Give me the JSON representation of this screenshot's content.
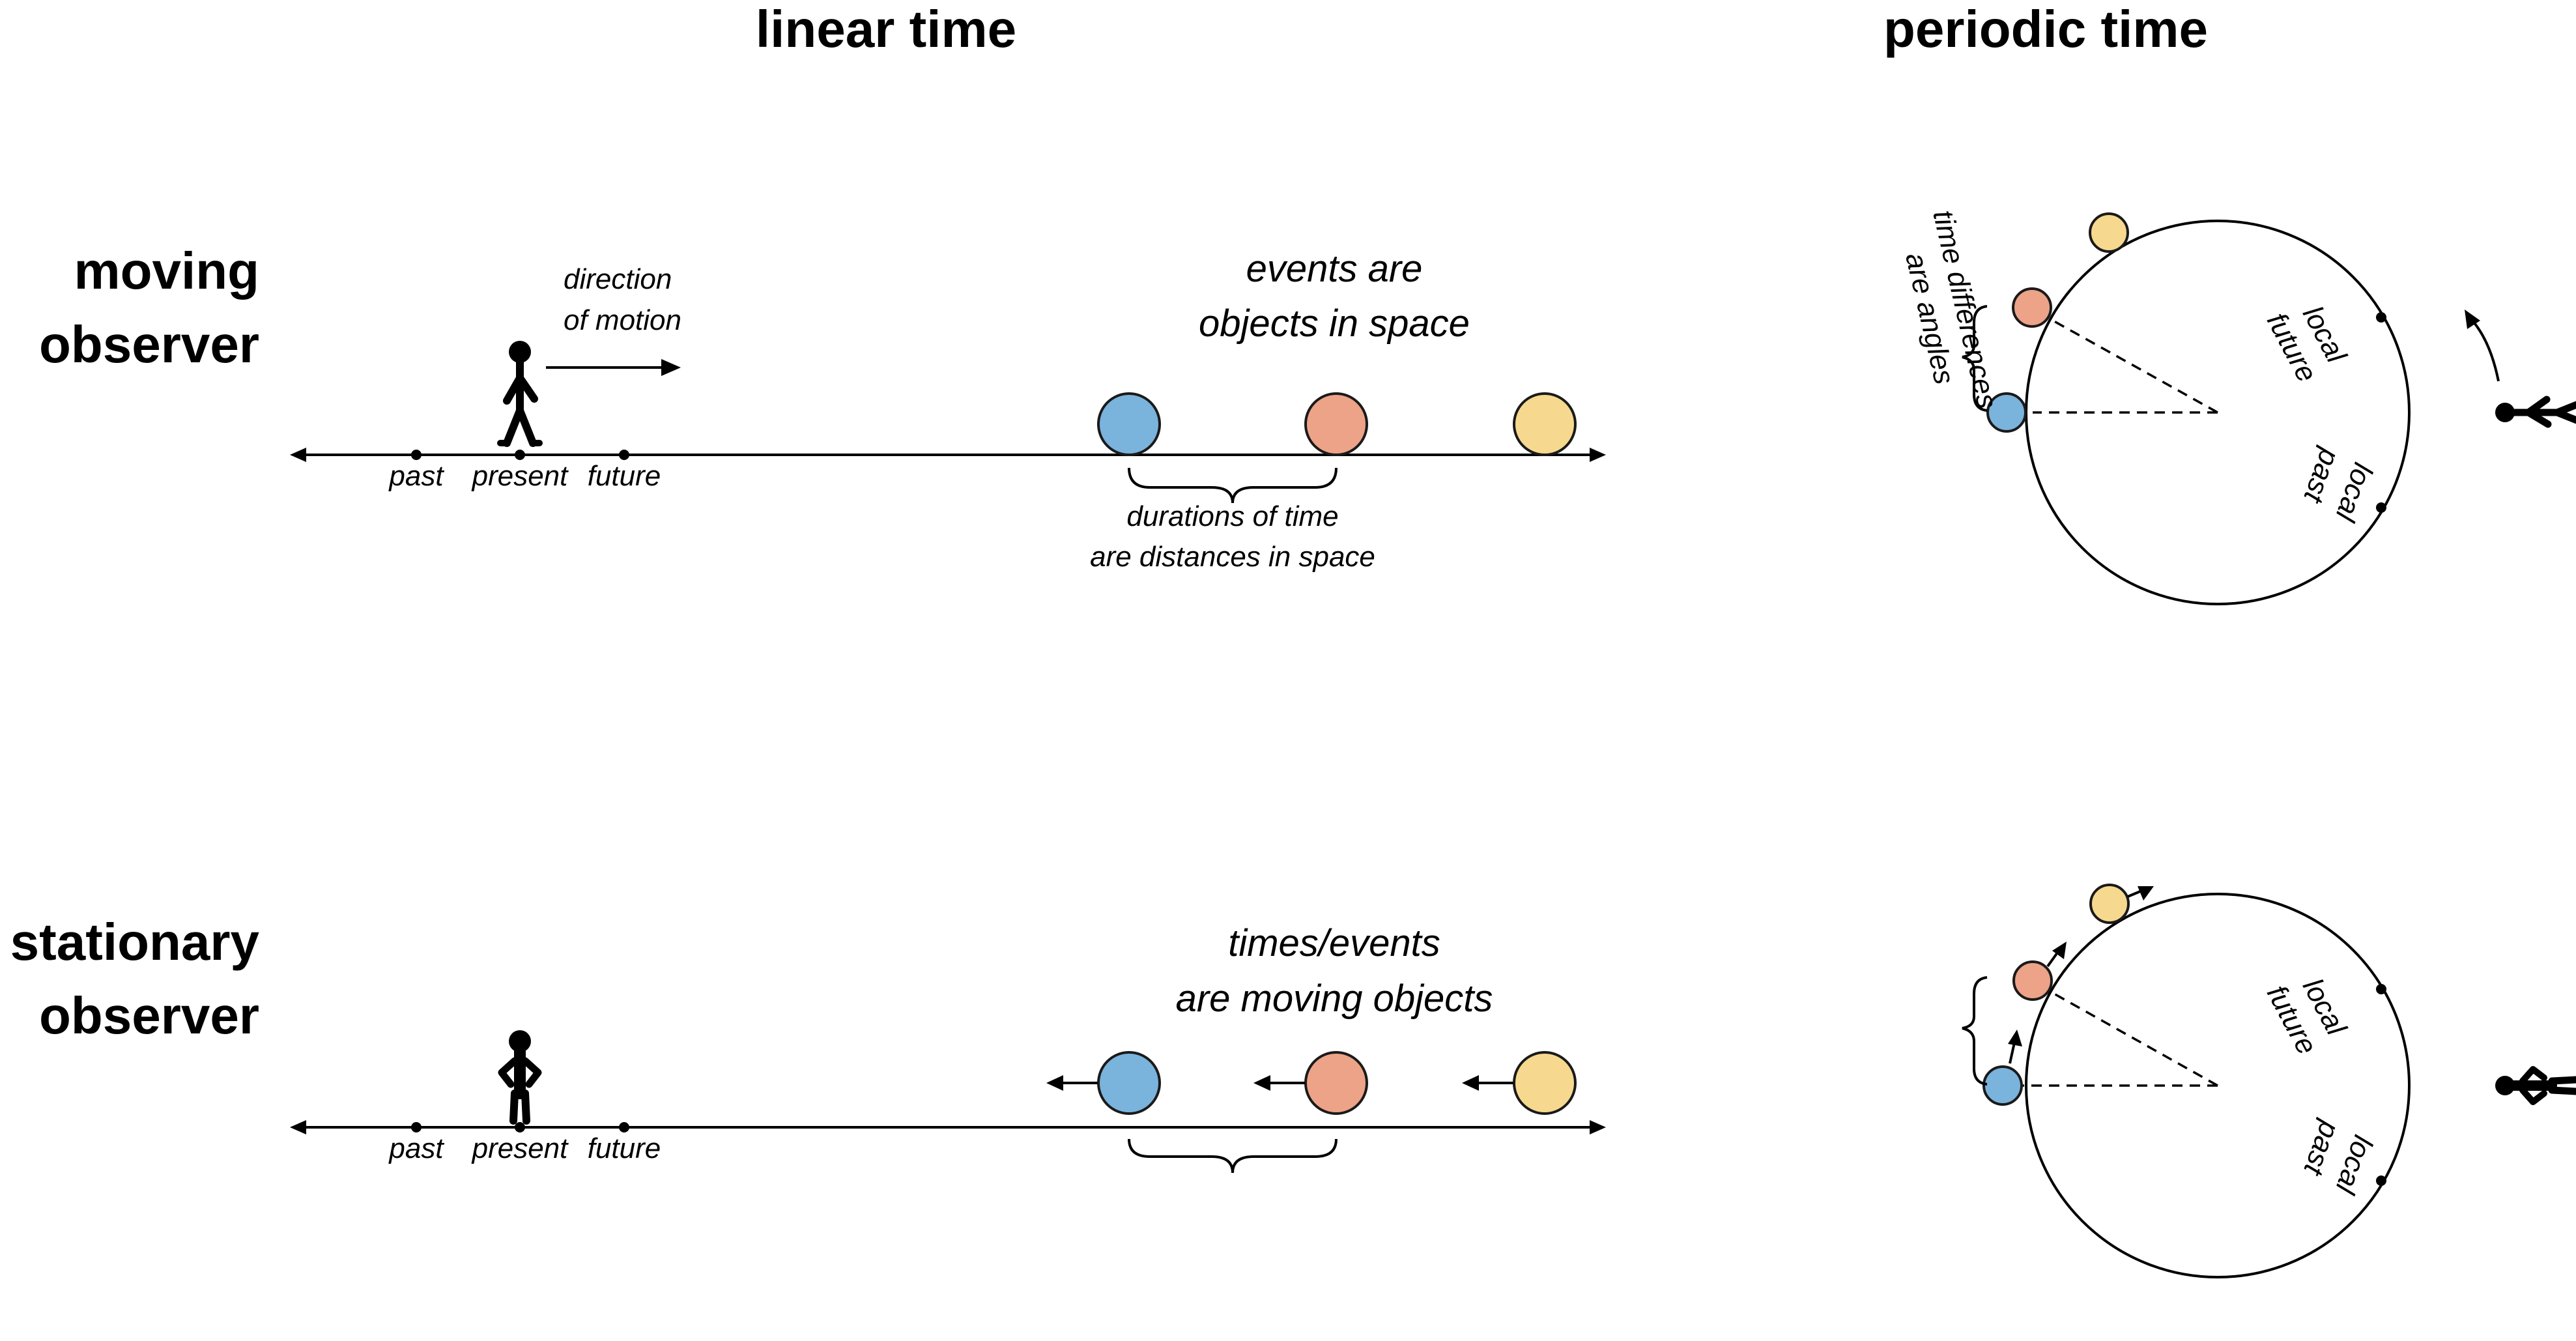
{
  "headings": {
    "linear_time": "linear time",
    "periodic_time": "periodic time"
  },
  "rows": {
    "moving": {
      "line1": "moving",
      "line2": "observer"
    },
    "stationary": {
      "line1": "stationary",
      "line2": "observer"
    }
  },
  "timeline_ticks": {
    "past": "past",
    "present": "present",
    "future": "future"
  },
  "moving_row": {
    "direction_line1": "direction",
    "direction_line2": "of motion",
    "events_line1": "events are",
    "events_line2": "objects in space",
    "durations_line1": "durations of time",
    "durations_line2": "are distances in space"
  },
  "stationary_row": {
    "times_line1": "times/events",
    "times_line2": "are moving objects"
  },
  "periodic": {
    "local_future_1": "local",
    "local_future_2": "future",
    "local_past_1": "local",
    "local_past_2": "past",
    "angles_line1": "time differences",
    "angles_line2": "are angles"
  },
  "colors": {
    "blue": "#7ab3dc",
    "salmon": "#eda387",
    "yellow": "#f6d98e",
    "line": "#000000"
  },
  "icons": [
    "walking-person-icon",
    "standing-person-icon",
    "arrow-icon",
    "curly-brace-icon"
  ]
}
